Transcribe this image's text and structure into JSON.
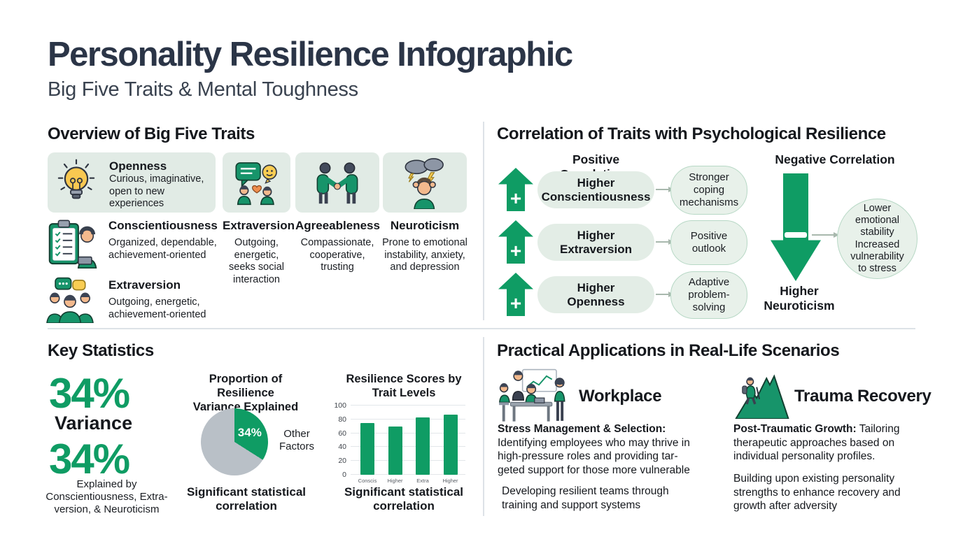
{
  "header": {
    "title": "Personality Resilience Infographic",
    "subtitle": "Big Five Traits & Mental Toughness"
  },
  "colors": {
    "green": "#0f9c64",
    "card_bg": "#e1ebe5",
    "pie_gray": "#b9c0c7",
    "title_navy": "#2b3547"
  },
  "overview": {
    "heading": "Overview of Big Five Traits",
    "openness_title": "Openness",
    "openness_desc": "Curious, imaginative,\nopen to new\nexperiences",
    "conscientiousness_title": "Conscientiousness",
    "conscientiousness_desc": "Organized, dependable,\nachievement-oriented",
    "extraversion_title": "Extraversion",
    "extraversion_desc": "Outgoing,\nenergetic,\nseeks social\ninteraction",
    "agreeableness_title": "Agreeableness",
    "agreeableness_desc": "Compassionate,\ncooperative,\ntrusting",
    "neuroticism_title": "Neuroticism",
    "neuroticism_desc": "Prone to emotional\ninstability, anxiety,\nand depression",
    "extraversion2_title": "Extraversion",
    "extraversion2_desc": "Outgoing, energetic,\nachievement-oriented"
  },
  "correlation": {
    "heading": "Correlation of Traits with Psychological Resilience",
    "positive_label": "Positive Correlations",
    "negative_label": "Negative Correlation",
    "rows": [
      {
        "trait": "Higher\nConscientiousness",
        "outcome": "Stronger\ncoping\nmechanisms"
      },
      {
        "trait": "Higher\nExtraversion",
        "outcome": "Positive\noutlook"
      },
      {
        "trait": "Higher\nOpenness",
        "outcome": "Adaptive\nproblem-\nsolving"
      }
    ],
    "negative_outcome": "Lower\nemotional\nstability\nIncreased\nvulnerability\nto stress",
    "negative_trait": "Higher\nNeuroticism"
  },
  "stats": {
    "heading": "Key Statistics",
    "stat1_value": "34%",
    "stat1_label": "Variance",
    "stat2_value": "34%",
    "stat2_label": "Explained by\nConscientiousness, Extra-\nversion, & Neuroticism",
    "pie_note": "Significant statistical\ncorrelation",
    "bar_note": "Significant statistical\ncorrelation"
  },
  "chart_data": [
    {
      "type": "pie",
      "title": "Proportion of Resilience\nVariance Explained",
      "slices": [
        {
          "label": "34%",
          "value": 34,
          "color": "#0f9c64"
        },
        {
          "label": "Other Factors",
          "value": 66,
          "color": "#b9c0c7"
        }
      ],
      "annotation": "Significant statistical correlation",
      "legend_position": "right"
    },
    {
      "type": "bar",
      "title": "Resilience Scores by\nTrait Levels",
      "categories": [
        "Conscis",
        "Higher",
        "Extra",
        "Higher"
      ],
      "values": [
        75,
        70,
        83,
        87
      ],
      "ylim": [
        0,
        100
      ],
      "yticks": [
        0,
        20,
        40,
        60,
        80,
        100
      ],
      "bar_color": "#0f9c64",
      "grid": true,
      "annotation": "Significant statistical correlation"
    }
  ],
  "applications": {
    "heading": "Practical Applications in Real-Life Scenarios",
    "workplace_title": "Workplace",
    "workplace_lead": "Stress Management & Selection:",
    "workplace_body": "\nIdentifying employees who may thrive in\nhigh-pressure roles and providing tar-\ngeted support for those more vulnerable",
    "workplace_para2": "Developing resilient teams through\ntraining and support systems",
    "trauma_title": "Trauma Recovery",
    "trauma_lead": "Post-Traumatic Growth:",
    "trauma_body": " Tailoring\ntherapeutic approaches based on\nindividual personality profiles.",
    "trauma_para2": "Building upon existing personality\nstrengths to enhance recovery and\ngrowth after adversity"
  }
}
